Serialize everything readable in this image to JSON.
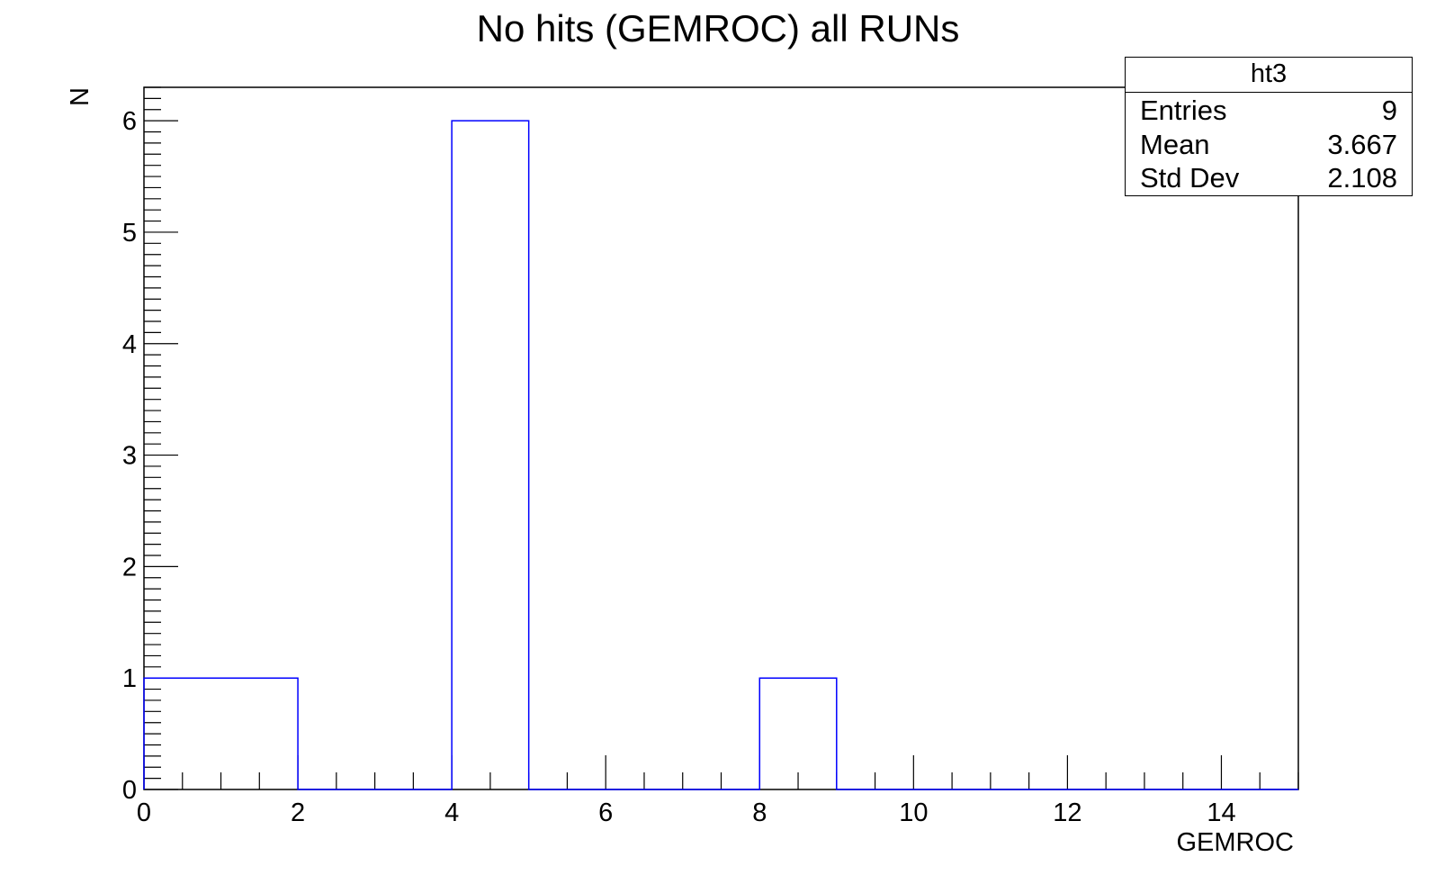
{
  "chart_data": {
    "type": "bar",
    "title": "No hits (GEMROC) all RUNs",
    "xlabel": "GEMROC",
    "ylabel": "N",
    "xlim": [
      0,
      15
    ],
    "ylim": [
      0,
      6.3
    ],
    "xticks": [
      0,
      2,
      4,
      6,
      8,
      10,
      12,
      14
    ],
    "yticks": [
      0,
      1,
      2,
      3,
      4,
      5,
      6
    ],
    "bin_width": 1,
    "bins": [
      {
        "x": 0,
        "value": 1
      },
      {
        "x": 1,
        "value": 1
      },
      {
        "x": 2,
        "value": 0
      },
      {
        "x": 3,
        "value": 0
      },
      {
        "x": 4,
        "value": 6
      },
      {
        "x": 5,
        "value": 0
      },
      {
        "x": 6,
        "value": 0
      },
      {
        "x": 7,
        "value": 0
      },
      {
        "x": 8,
        "value": 1
      },
      {
        "x": 9,
        "value": 0
      },
      {
        "x": 10,
        "value": 0
      },
      {
        "x": 11,
        "value": 0
      },
      {
        "x": 12,
        "value": 0
      },
      {
        "x": 13,
        "value": 0
      },
      {
        "x": 14,
        "value": 0
      }
    ],
    "line_color": "#0000ff",
    "grid": false,
    "stats": {
      "name": "ht3",
      "rows": [
        {
          "label": "Entries",
          "value": "9"
        },
        {
          "label": "Mean",
          "value": "3.667"
        },
        {
          "label": "Std Dev",
          "value": "2.108"
        }
      ]
    }
  }
}
